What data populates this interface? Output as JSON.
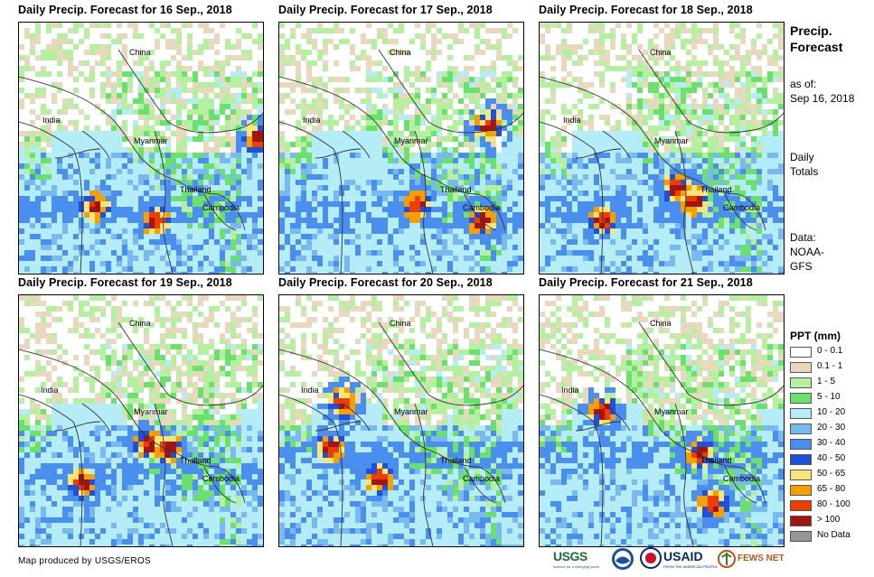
{
  "panels": [
    {
      "title": "Daily Precip. Forecast for 16 Sep., 2018",
      "seed": 16
    },
    {
      "title": "Daily Precip. Forecast for 17 Sep., 2018",
      "seed": 17
    },
    {
      "title": "Daily Precip. Forecast for 18 Sep., 2018",
      "seed": 18
    },
    {
      "title": "Daily Precip. Forecast for 19 Sep., 2018",
      "seed": 19
    },
    {
      "title": "Daily Precip. Forecast for 20 Sep., 2018",
      "seed": 20
    },
    {
      "title": "Daily Precip. Forecast for 21 Sep., 2018",
      "seed": 21
    }
  ],
  "map_labels": {
    "china": "China",
    "india": "India",
    "myanmar": "Myanmar",
    "thailand": "Thailand",
    "cambodia": "Cambodia"
  },
  "sidebar": {
    "title_line1": "Precip.",
    "title_line2": "Forecast",
    "asof_line1": "as of:",
    "asof_line2": "Sep 16, 2018",
    "daily_line1": "Daily",
    "daily_line2": "Totals",
    "data_line1": "Data:",
    "data_line2": "NOAA-",
    "data_line3": "GFS"
  },
  "legend": {
    "title": "PPT (mm)",
    "items": [
      {
        "label": "0 - 0.1",
        "color": "#ffffff"
      },
      {
        "label": "0.1 - 1",
        "color": "#e8d8be"
      },
      {
        "label": "1 - 5",
        "color": "#b4f0a0"
      },
      {
        "label": "5 - 10",
        "color": "#6ce06c"
      },
      {
        "label": "10 - 20",
        "color": "#b4ecf8"
      },
      {
        "label": "20 - 30",
        "color": "#7ab8f0"
      },
      {
        "label": "30 - 40",
        "color": "#4a8ef0"
      },
      {
        "label": "40 - 50",
        "color": "#1e50d8"
      },
      {
        "label": "50 - 65",
        "color": "#fae678"
      },
      {
        "label": "65 - 80",
        "color": "#f5a000"
      },
      {
        "label": "80 - 100",
        "color": "#f03c00"
      },
      {
        "label": "> 100",
        "color": "#a01414"
      },
      {
        "label": "No Data",
        "color": "#969696"
      }
    ]
  },
  "footer": {
    "credit": "Map produced by USGS/EROS",
    "logo_usgs": "USGS",
    "logo_usgs_tagline": "science for a changing world",
    "logo_usaid": "USAID",
    "logo_usaid_tagline": "FROM THE AMERICAN PEOPLE",
    "logo_fews": "FEWS NET"
  }
}
